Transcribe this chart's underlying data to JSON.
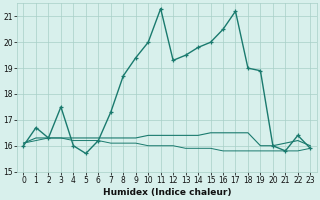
{
  "xlabel": "Humidex (Indice chaleur)",
  "x": [
    0,
    1,
    2,
    3,
    4,
    5,
    6,
    7,
    8,
    9,
    10,
    11,
    12,
    13,
    14,
    15,
    16,
    17,
    18,
    19,
    20,
    21,
    22,
    23
  ],
  "line1": [
    16.0,
    16.7,
    16.3,
    17.5,
    16.0,
    15.7,
    16.2,
    17.3,
    18.7,
    19.4,
    20.0,
    21.3,
    19.3,
    19.5,
    19.8,
    20.0,
    20.5,
    21.2,
    19.0,
    18.9,
    16.0,
    15.8,
    16.4,
    15.9
  ],
  "line2": [
    16.1,
    16.3,
    16.3,
    16.3,
    16.3,
    16.3,
    16.3,
    16.3,
    16.3,
    16.3,
    16.4,
    16.4,
    16.4,
    16.4,
    16.4,
    16.5,
    16.5,
    16.5,
    16.5,
    16.0,
    16.0,
    16.1,
    16.2,
    16.0
  ],
  "line3": [
    16.1,
    16.2,
    16.3,
    16.3,
    16.2,
    16.2,
    16.2,
    16.1,
    16.1,
    16.1,
    16.0,
    16.0,
    16.0,
    15.9,
    15.9,
    15.9,
    15.8,
    15.8,
    15.8,
    15.8,
    15.8,
    15.8,
    15.8,
    15.9
  ],
  "ylim": [
    15.0,
    21.5
  ],
  "yticks": [
    15,
    16,
    17,
    18,
    19,
    20,
    21
  ],
  "xticks": [
    0,
    1,
    2,
    3,
    4,
    5,
    6,
    7,
    8,
    9,
    10,
    11,
    12,
    13,
    14,
    15,
    16,
    17,
    18,
    19,
    20,
    21,
    22,
    23
  ],
  "line_color": "#1a7a6e",
  "bg_color": "#d8f0ec",
  "grid_color": "#a8cfc8"
}
